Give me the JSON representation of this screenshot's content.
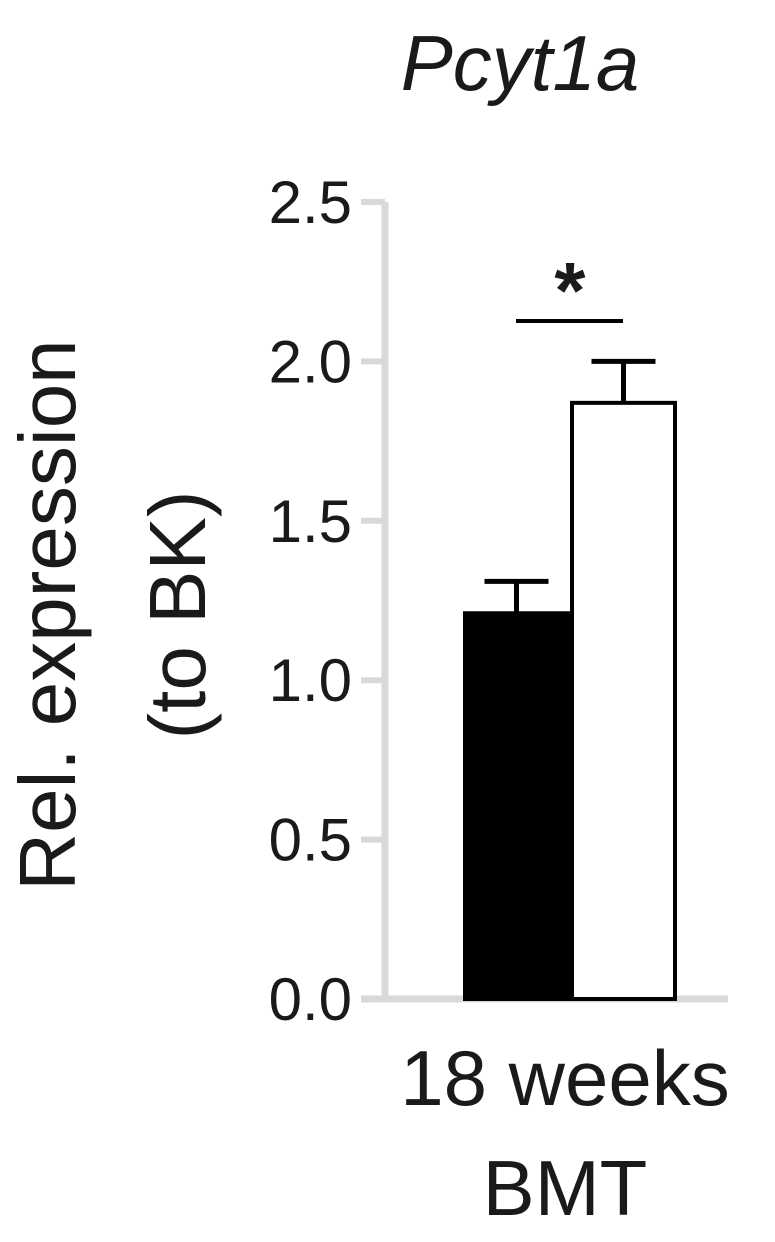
{
  "chart_data": {
    "type": "bar",
    "title": "Pcyt1a",
    "ylabel_lines": [
      "Rel. expression",
      "(to BK)"
    ],
    "xlabel_lines": [
      "18 weeks",
      "BMT"
    ],
    "ylim": [
      0,
      2.5
    ],
    "yticks": [
      "0.0",
      "0.5",
      "1.0",
      "1.5",
      "2.0",
      "2.5"
    ],
    "ytick_values": [
      0,
      0.5,
      1.0,
      1.5,
      2.0,
      2.5
    ],
    "series": [
      {
        "values": [
          1.21
        ],
        "errors": [
          0.1
        ],
        "color": "#000000",
        "fill": "#000000"
      },
      {
        "values": [
          1.87
        ],
        "errors": [
          0.13
        ],
        "color": "#000000",
        "fill": "#ffffff"
      }
    ],
    "significance": {
      "label": "*"
    },
    "axis_color": "#d9d9d9"
  }
}
